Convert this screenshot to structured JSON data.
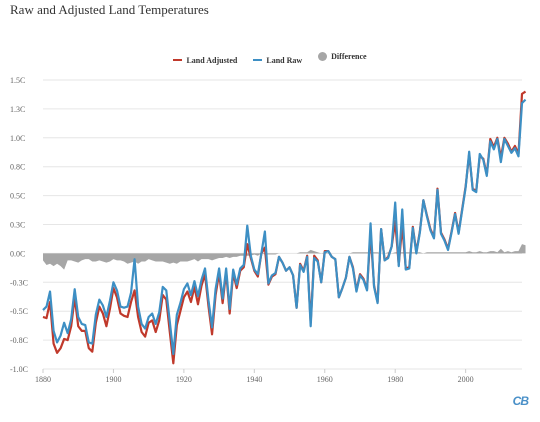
{
  "chart_data": {
    "type": "line",
    "title": "Raw and Adjusted Land Temperatures",
    "xlabel": "",
    "ylabel": "",
    "xlim": [
      1880,
      2016
    ],
    "ylim": [
      -1.0,
      1.5
    ],
    "x_ticks": [
      "1880",
      "1900",
      "1920",
      "1940",
      "1960",
      "1980",
      "2000"
    ],
    "y_ticks": [
      "1.5C",
      "1.3C",
      "1.0C",
      "0.8C",
      "0.5C",
      "0.3C",
      "0.0C",
      "-0.3C",
      "-0.5C",
      "-0.8C",
      "-1.0C"
    ],
    "grid": true,
    "legend_position": "top-center",
    "x_start": 1880,
    "series": [
      {
        "name": "Land Adjusted",
        "color": "#c0392b",
        "values": [
          -0.55,
          -0.56,
          -0.42,
          -0.78,
          -0.86,
          -0.82,
          -0.74,
          -0.75,
          -0.63,
          -0.38,
          -0.63,
          -0.67,
          -0.67,
          -0.82,
          -0.85,
          -0.6,
          -0.46,
          -0.52,
          -0.63,
          -0.48,
          -0.3,
          -0.38,
          -0.52,
          -0.54,
          -0.55,
          -0.42,
          -0.32,
          -0.55,
          -0.68,
          -0.72,
          -0.6,
          -0.58,
          -0.68,
          -0.58,
          -0.36,
          -0.4,
          -0.68,
          -0.95,
          -0.62,
          -0.5,
          -0.38,
          -0.33,
          -0.42,
          -0.29,
          -0.44,
          -0.28,
          -0.18,
          -0.46,
          -0.7,
          -0.36,
          -0.17,
          -0.43,
          -0.16,
          -0.52,
          -0.17,
          -0.3,
          -0.15,
          -0.12,
          0.08,
          -0.04,
          -0.15,
          -0.2,
          0.0,
          0.05,
          -0.27,
          -0.2,
          -0.18,
          -0.03,
          -0.08,
          -0.15,
          -0.12,
          -0.19,
          -0.47,
          -0.09,
          -0.15,
          -0.02,
          -0.6,
          -0.02,
          -0.06,
          -0.25,
          0.02,
          0.02,
          -0.03,
          -0.05,
          -0.38,
          -0.3,
          -0.21,
          -0.03,
          -0.12,
          -0.32,
          -0.18,
          -0.22,
          -0.31,
          0.18,
          -0.28,
          -0.42,
          0.21,
          -0.06,
          -0.03,
          0.06,
          0.28,
          -0.1,
          0.24,
          -0.13,
          -0.12,
          0.23,
          0.01,
          0.19,
          0.46,
          0.33,
          0.21,
          0.14,
          0.56,
          0.18,
          0.12,
          0.04,
          0.19,
          0.35,
          0.18,
          0.38,
          0.58,
          0.86,
          0.56,
          0.54,
          0.84,
          0.82,
          0.68,
          0.99,
          0.92,
          1.0,
          0.83,
          1.0,
          0.95,
          0.88,
          0.93,
          0.86,
          1.38,
          1.4
        ]
      },
      {
        "name": "Land Raw",
        "color": "#3d8fc4",
        "values": [
          -0.49,
          -0.46,
          -0.33,
          -0.67,
          -0.77,
          -0.71,
          -0.6,
          -0.69,
          -0.57,
          -0.31,
          -0.55,
          -0.61,
          -0.62,
          -0.77,
          -0.78,
          -0.53,
          -0.4,
          -0.45,
          -0.55,
          -0.41,
          -0.25,
          -0.32,
          -0.46,
          -0.47,
          -0.46,
          -0.34,
          -0.05,
          -0.46,
          -0.61,
          -0.65,
          -0.55,
          -0.52,
          -0.61,
          -0.51,
          -0.29,
          -0.32,
          -0.59,
          -0.87,
          -0.53,
          -0.43,
          -0.31,
          -0.26,
          -0.36,
          -0.24,
          -0.37,
          -0.23,
          -0.13,
          -0.41,
          -0.64,
          -0.31,
          -0.13,
          -0.39,
          -0.13,
          -0.48,
          -0.14,
          -0.27,
          -0.13,
          -0.1,
          0.24,
          -0.02,
          -0.14,
          -0.18,
          0.0,
          0.19,
          -0.26,
          -0.19,
          -0.17,
          -0.03,
          -0.08,
          -0.15,
          -0.12,
          -0.19,
          -0.47,
          -0.1,
          -0.16,
          -0.03,
          -0.63,
          -0.04,
          -0.07,
          -0.25,
          0.01,
          0.02,
          -0.03,
          -0.05,
          -0.38,
          -0.3,
          -0.21,
          -0.03,
          -0.13,
          -0.33,
          -0.19,
          -0.23,
          -0.32,
          0.26,
          -0.29,
          -0.43,
          0.21,
          -0.06,
          -0.04,
          0.06,
          0.44,
          -0.11,
          0.38,
          -0.14,
          -0.13,
          0.22,
          0.0,
          0.18,
          0.46,
          0.32,
          0.2,
          0.13,
          0.55,
          0.17,
          0.11,
          0.03,
          0.18,
          0.34,
          0.17,
          0.37,
          0.57,
          0.88,
          0.55,
          0.53,
          0.86,
          0.81,
          0.67,
          0.97,
          0.9,
          0.99,
          0.79,
          0.99,
          0.93,
          0.87,
          0.91,
          0.84,
          1.3,
          1.33
        ]
      },
      {
        "name": "Difference",
        "color": "#a6a6a6",
        "values": [
          -0.06,
          -0.1,
          -0.09,
          -0.11,
          -0.09,
          -0.11,
          -0.14,
          -0.06,
          -0.06,
          -0.07,
          -0.08,
          -0.06,
          -0.05,
          -0.05,
          -0.07,
          -0.07,
          -0.06,
          -0.07,
          -0.08,
          -0.07,
          -0.05,
          -0.06,
          -0.06,
          -0.07,
          -0.09,
          -0.08,
          -0.07,
          -0.09,
          -0.07,
          -0.07,
          -0.05,
          -0.06,
          -0.07,
          -0.07,
          -0.07,
          -0.08,
          -0.09,
          -0.08,
          -0.09,
          -0.07,
          -0.07,
          -0.07,
          -0.06,
          -0.05,
          -0.07,
          -0.05,
          -0.05,
          -0.05,
          -0.06,
          -0.05,
          -0.04,
          -0.04,
          -0.03,
          -0.04,
          -0.03,
          -0.03,
          -0.02,
          -0.02,
          -0.02,
          -0.02,
          -0.01,
          -0.02,
          0.0,
          -0.01,
          -0.01,
          -0.01,
          -0.01,
          0.0,
          0.0,
          0.0,
          0.0,
          0.0,
          0.0,
          0.01,
          0.01,
          0.01,
          0.03,
          0.02,
          0.01,
          0.0,
          0.01,
          0.0,
          0.0,
          0.0,
          0.0,
          0.0,
          0.0,
          0.0,
          0.01,
          0.01,
          0.01,
          0.01,
          0.01,
          0.01,
          0.01,
          0.01,
          0.0,
          0.0,
          0.01,
          0.0,
          0.01,
          0.01,
          0.01,
          0.01,
          0.01,
          0.01,
          0.01,
          0.01,
          0.0,
          0.01,
          0.01,
          0.01,
          0.01,
          0.01,
          0.01,
          0.01,
          0.01,
          0.01,
          0.01,
          0.01,
          0.01,
          0.02,
          0.01,
          0.01,
          0.02,
          0.01,
          0.01,
          0.02,
          0.02,
          0.01,
          0.04,
          0.01,
          0.02,
          0.01,
          0.02,
          0.02,
          0.08,
          0.07
        ]
      }
    ]
  },
  "brand": "CB"
}
